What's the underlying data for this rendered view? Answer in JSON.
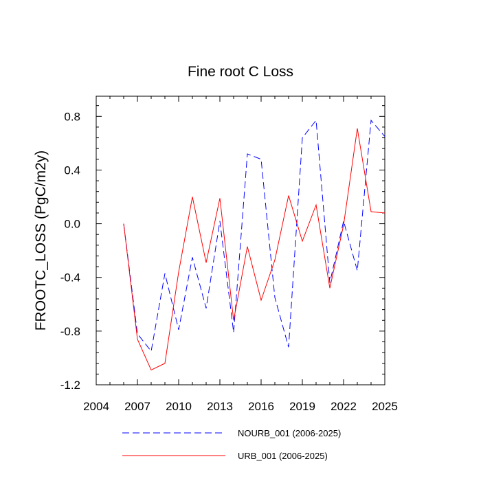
{
  "chart_data": {
    "type": "line",
    "title": "Fine root C Loss",
    "xlabel": "",
    "ylabel": "FROOTC_LOSS  (PgC/m2y)",
    "xlim": [
      2004,
      2025
    ],
    "ylim": [
      -1.2,
      0.95
    ],
    "xticks": [
      2004,
      2007,
      2010,
      2013,
      2016,
      2019,
      2022,
      2025
    ],
    "xtick_labels": [
      "2004",
      "2007",
      "2010",
      "2013",
      "2016",
      "2019",
      "2022",
      "2025"
    ],
    "yticks": [
      -1.2,
      -0.8,
      -0.4,
      0.0,
      0.4,
      0.8
    ],
    "ytick_labels": [
      "-1.2",
      "-0.8",
      "-0.4",
      "0.0",
      "0.4",
      "0.8"
    ],
    "grid": false,
    "legend_position": "bottom",
    "x": [
      2006,
      2007,
      2008,
      2009,
      2010,
      2011,
      2012,
      2013,
      2014,
      2015,
      2016,
      2017,
      2018,
      2019,
      2020,
      2021,
      2022,
      2023,
      2024,
      2025
    ],
    "series": [
      {
        "name": "NOURB_001 (2006-2025)",
        "color": "#0000ff",
        "dash": "dashed",
        "values": [
          0.0,
          -0.82,
          -0.95,
          -0.37,
          -0.79,
          -0.25,
          -0.63,
          0.02,
          -0.81,
          0.52,
          0.48,
          -0.55,
          -0.92,
          0.64,
          0.77,
          -0.44,
          0.02,
          -0.35,
          0.77,
          0.65
        ]
      },
      {
        "name": "URB_001 (2006-2025)",
        "color": "#ff0000",
        "dash": "solid",
        "values": [
          0.0,
          -0.86,
          -1.09,
          -1.04,
          -0.36,
          0.2,
          -0.29,
          0.19,
          -0.72,
          -0.17,
          -0.57,
          -0.27,
          0.21,
          -0.13,
          0.14,
          -0.48,
          -0.01,
          0.71,
          0.09,
          0.08
        ]
      }
    ]
  }
}
